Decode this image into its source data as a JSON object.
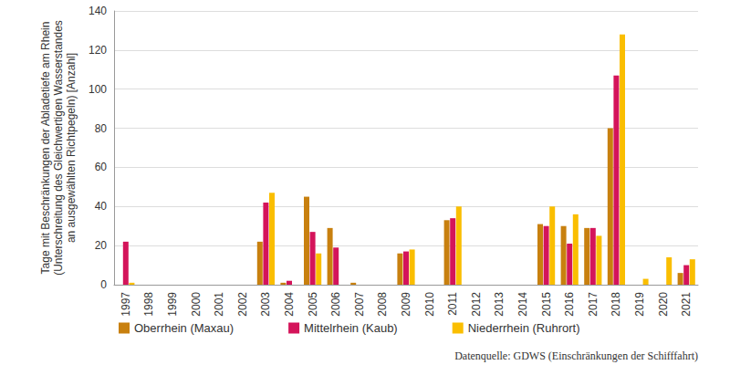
{
  "chart_data": {
    "type": "bar",
    "y_label": "Tage mit Beschränkungen der Abladetiefe am Rhein\n(Unterschreitung des Gleichwertigen Wasserstandes\nan ausgewählten Richtpegeln) [Anzahl]",
    "source": "Datenquelle: GDWS (Einschränkungen der Schifffahrt)",
    "categories": [
      "1997",
      "1998",
      "1999",
      "2000",
      "2001",
      "2002",
      "2003",
      "2004",
      "2005",
      "2006",
      "2007",
      "2008",
      "2009",
      "2010",
      "2011",
      "2012",
      "2013",
      "2014",
      "2015",
      "2016",
      "2017",
      "2018",
      "2019",
      "2020",
      "2021"
    ],
    "series": [
      {
        "name": "Oberrhein (Maxau)",
        "color": "#c8800f",
        "values": [
          0,
          0,
          0,
          0,
          0,
          0,
          22,
          1,
          45,
          29,
          1,
          0,
          16,
          0,
          33,
          0,
          0,
          0,
          31,
          30,
          29,
          80,
          0,
          0,
          6
        ]
      },
      {
        "name": "Mittelrhein (Kaub)",
        "color": "#d4145a",
        "values": [
          22,
          0,
          0,
          0,
          0,
          0,
          42,
          2,
          27,
          19,
          0,
          0,
          17,
          0,
          34,
          0,
          0,
          0,
          30,
          21,
          29,
          107,
          0,
          0,
          10
        ]
      },
      {
        "name": "Niederrhein (Ruhrort)",
        "color": "#fabe00",
        "values": [
          1,
          0,
          0,
          0,
          0,
          0,
          47,
          0,
          16,
          0,
          0,
          0,
          18,
          0,
          40,
          0,
          0,
          0,
          40,
          36,
          25,
          128,
          3,
          14,
          13
        ]
      }
    ],
    "ylim": [
      0,
      140
    ],
    "yticks": [
      0,
      20,
      40,
      60,
      80,
      100,
      120,
      140
    ],
    "grid": true,
    "legend": "bottom"
  }
}
